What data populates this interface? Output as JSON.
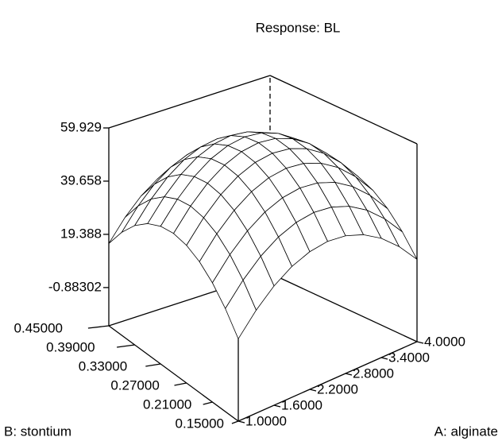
{
  "chart_data": {
    "type": "surface",
    "title": "Response: BL",
    "x_label": "A: alginate",
    "y_label": "B: stontium",
    "x": [
      1.0,
      1.3,
      1.6,
      1.9,
      2.2,
      2.5,
      2.8,
      3.1,
      3.4,
      3.7,
      4.0
    ],
    "y": [
      0.15,
      0.18,
      0.21,
      0.24,
      0.27,
      0.3,
      0.33,
      0.36,
      0.39,
      0.42,
      0.45
    ],
    "z": [
      [
        15.9,
        23.8,
        30.0,
        34.4,
        37.0,
        37.9,
        37.0,
        34.4,
        30.0,
        23.8,
        15.9
      ],
      [
        23.8,
        31.7,
        37.9,
        42.3,
        44.9,
        45.8,
        44.9,
        42.3,
        37.9,
        31.7,
        23.8
      ],
      [
        30.0,
        37.9,
        44.1,
        48.5,
        51.1,
        52.0,
        51.1,
        48.5,
        44.1,
        37.9,
        30.0
      ],
      [
        34.4,
        42.3,
        48.5,
        52.9,
        55.5,
        56.4,
        55.5,
        52.9,
        48.5,
        42.3,
        34.4
      ],
      [
        37.0,
        44.9,
        51.1,
        55.5,
        58.1,
        59.0,
        58.1,
        55.5,
        51.1,
        44.9,
        37.0
      ],
      [
        37.9,
        45.8,
        52.0,
        56.4,
        59.0,
        59.9,
        59.0,
        56.4,
        52.0,
        45.8,
        37.9
      ],
      [
        37.0,
        44.9,
        51.1,
        55.5,
        58.1,
        59.0,
        58.1,
        55.5,
        51.1,
        44.9,
        37.0
      ],
      [
        34.4,
        42.3,
        48.5,
        52.9,
        55.5,
        56.4,
        55.5,
        52.9,
        48.5,
        42.3,
        34.4
      ],
      [
        30.0,
        37.9,
        44.1,
        48.5,
        51.1,
        52.0,
        51.1,
        48.5,
        44.1,
        37.9,
        30.0
      ],
      [
        23.8,
        31.7,
        37.9,
        42.3,
        44.9,
        45.8,
        44.9,
        42.3,
        37.9,
        31.7,
        23.8
      ],
      [
        15.9,
        23.8,
        30.0,
        34.4,
        37.0,
        37.9,
        37.0,
        34.4,
        30.0,
        23.8,
        15.9
      ]
    ],
    "xlim": [
      1.0,
      4.0
    ],
    "ylim": [
      0.15,
      0.45
    ],
    "zlim": [
      -15.45,
      59.929
    ],
    "xticks": [
      {
        "value": 1.0,
        "label": "1.0000"
      },
      {
        "value": 1.6,
        "label": "1.6000"
      },
      {
        "value": 2.2,
        "label": "2.2000"
      },
      {
        "value": 2.8,
        "label": "2.8000"
      },
      {
        "value": 3.4,
        "label": "3.4000"
      },
      {
        "value": 4.0,
        "label": "4.0000"
      }
    ],
    "yticks": [
      {
        "value": 0.15,
        "label": "0.15000"
      },
      {
        "value": 0.21,
        "label": "0.21000"
      },
      {
        "value": 0.27,
        "label": "0.27000"
      },
      {
        "value": 0.33,
        "label": "0.33000"
      },
      {
        "value": 0.39,
        "label": "0.39000"
      },
      {
        "value": 0.45,
        "label": "0.45000"
      }
    ],
    "zticks": [
      -0.88302,
      19.388,
      39.658,
      59.929
    ],
    "color": "#000000"
  }
}
